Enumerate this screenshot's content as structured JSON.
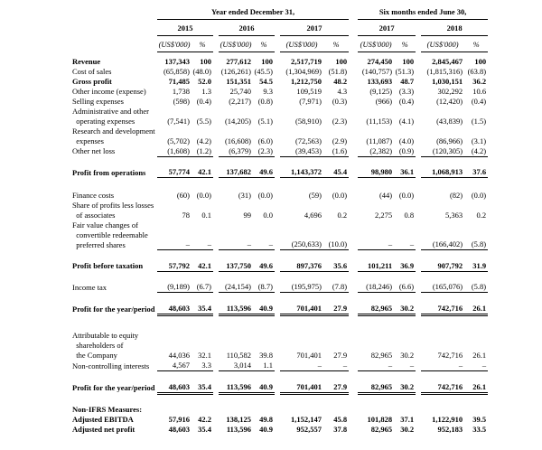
{
  "colors": {
    "text": "#000000",
    "rule_line": "#000000",
    "background": "#ffffff"
  },
  "table": {
    "groups": [
      {
        "label": "Year ended December 31,"
      },
      {
        "label": "Six months ended June 30,"
      }
    ],
    "years": [
      "2015",
      "2016",
      "2017",
      "2017",
      "2018"
    ],
    "unit_label": "(US$'000)",
    "percent_label": "%",
    "rows": [
      {
        "spacer": 5
      },
      {
        "label": "Revenue",
        "bold": true,
        "values": [
          "137,343",
          "100",
          "277,612",
          "100",
          "2,517,719",
          "100",
          "274,450",
          "100",
          "2,845,467",
          "100"
        ]
      },
      {
        "label": "Cost of sales",
        "values": [
          "(65,858)",
          "(48.0)",
          "(126,261)",
          "(45.5)",
          "(1,304,969)",
          "(51.8)",
          "(140,757)",
          "(51.3)",
          "(1,815,316)",
          "(63.8)"
        ]
      },
      {
        "label": "Gross profit",
        "bold": true,
        "values": [
          "71,485",
          "52.0",
          "151,351",
          "54.5",
          "1,212,750",
          "48.2",
          "133,693",
          "48.7",
          "1,030,151",
          "36.2"
        ]
      },
      {
        "label": "Other income (expense)",
        "values": [
          "1,738",
          "1.3",
          "25,740",
          "9.3",
          "109,519",
          "4.3",
          "(9,125)",
          "(3.3)",
          "302,292",
          "10.6"
        ]
      },
      {
        "label": "Selling expenses",
        "values": [
          "(598)",
          "(0.4)",
          "(2,217)",
          "(0.8)",
          "(7,971)",
          "(0.3)",
          "(966)",
          "(0.4)",
          "(12,420)",
          "(0.4)"
        ]
      },
      {
        "label": "Administrative and other\n  operating expenses",
        "values": [
          "(7,541)",
          "(5.5)",
          "(14,205)",
          "(5.1)",
          "(58,910)",
          "(2.3)",
          "(11,153)",
          "(4.1)",
          "(43,839)",
          "(1.5)"
        ]
      },
      {
        "label": "Research and development\n  expenses",
        "values": [
          "(5,702)",
          "(4.2)",
          "(16,608)",
          "(6.0)",
          "(72,563)",
          "(2.9)",
          "(11,087)",
          "(4.0)",
          "(86,966)",
          "(3.1)"
        ]
      },
      {
        "label": "Other net loss",
        "line": "single",
        "values": [
          "(1,608)",
          "(1.2)",
          "(6,379)",
          "(2.3)",
          "(39,453)",
          "(1.6)",
          "(2,382)",
          "(0.9)",
          "(120,305)",
          "(4.2)"
        ]
      },
      {
        "spacer": 12
      },
      {
        "label": "Profit from operations",
        "bold": true,
        "line": "single",
        "values": [
          "57,774",
          "42.1",
          "137,682",
          "49.6",
          "1,143,372",
          "45.4",
          "98,980",
          "36.1",
          "1,068,913",
          "37.6"
        ]
      },
      {
        "spacer": 14
      },
      {
        "label": "Finance costs",
        "values": [
          "(60)",
          "(0.0)",
          "(31)",
          "(0.0)",
          "(59)",
          "(0.0)",
          "(44)",
          "(0.0)",
          "(82)",
          "(0.0)"
        ]
      },
      {
        "label": "Share of profits less losses\n  of associates",
        "values": [
          "78",
          "0.1",
          "99",
          "0.0",
          "4,696",
          "0.2",
          "2,275",
          "0.8",
          "5,363",
          "0.2"
        ]
      },
      {
        "label": "Fair value changes of\n  convertible redeemable\n  preferred shares",
        "line": "single",
        "values": [
          "–",
          "–",
          "–",
          "–",
          "(250,633)",
          "(10.0)",
          "–",
          "–",
          "(166,402)",
          "(5.8)"
        ]
      },
      {
        "spacer": 12
      },
      {
        "label": "Profit before taxation",
        "bold": true,
        "line": "single",
        "values": [
          "57,792",
          "42.1",
          "137,750",
          "49.6",
          "897,376",
          "35.6",
          "101,211",
          "36.9",
          "907,792",
          "31.9"
        ]
      },
      {
        "spacer": 12
      },
      {
        "label": "Income tax",
        "line": "single",
        "values": [
          "(9,189)",
          "(6.7)",
          "(24,154)",
          "(8.7)",
          "(195,975)",
          "(7.8)",
          "(18,246)",
          "(6.6)",
          "(165,076)",
          "(5.8)"
        ]
      },
      {
        "spacer": 12
      },
      {
        "label": "Profit for the year/period",
        "bold": true,
        "line": "double",
        "values": [
          "48,603",
          "35.4",
          "113,596",
          "40.9",
          "701,401",
          "27.9",
          "82,965",
          "30.2",
          "742,716",
          "26.1"
        ]
      },
      {
        "spacer": 18
      },
      {
        "label": "Attributable to equity\n  shareholders of\n  the Company",
        "values": [
          "44,036",
          "32.1",
          "110,582",
          "39.8",
          "701,401",
          "27.9",
          "82,965",
          "30.2",
          "742,716",
          "26.1"
        ]
      },
      {
        "label": "Non-controlling interests",
        "line": "single",
        "values": [
          "4,567",
          "3.3",
          "3,014",
          "1.1",
          "–",
          "–",
          "–",
          "–",
          "–",
          "–"
        ]
      },
      {
        "spacer": 12
      },
      {
        "label": "Profit for the year/period",
        "bold": true,
        "line": "double",
        "values": [
          "48,603",
          "35.4",
          "113,596",
          "40.9",
          "701,401",
          "27.9",
          "82,965",
          "30.2",
          "742,716",
          "26.1"
        ]
      },
      {
        "spacer": 13
      },
      {
        "label": "Non-IFRS Measures:",
        "bold": true,
        "values": [
          "",
          "",
          "",
          "",
          "",
          "",
          "",
          "",
          "",
          ""
        ]
      },
      {
        "label": "Adjusted EBITDA",
        "bold": true,
        "values": [
          "57,916",
          "42.2",
          "138,125",
          "49.8",
          "1,152,147",
          "45.8",
          "101,828",
          "37.1",
          "1,122,910",
          "39.5"
        ]
      },
      {
        "label": "Adjusted net profit",
        "bold": true,
        "values": [
          "48,603",
          "35.4",
          "113,596",
          "40.9",
          "952,557",
          "37.8",
          "82,965",
          "30.2",
          "952,183",
          "33.5"
        ]
      }
    ]
  }
}
